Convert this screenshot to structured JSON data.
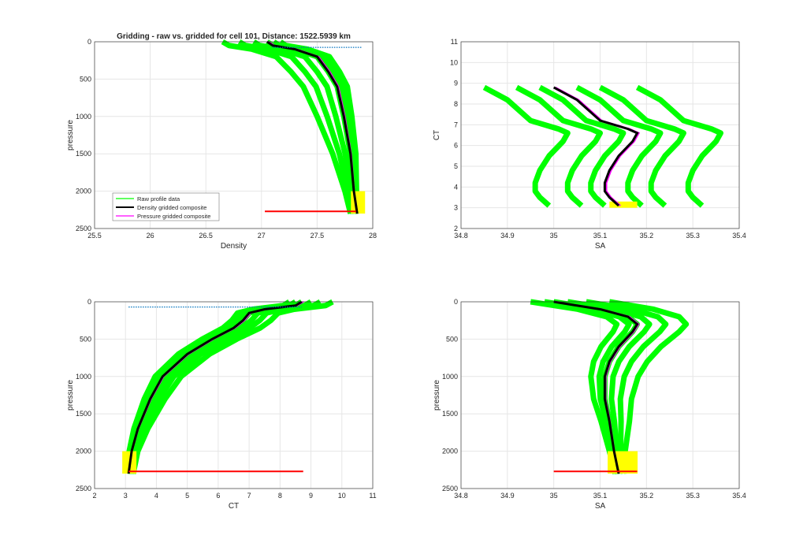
{
  "chart_data": [
    {
      "type": "line",
      "title": "Gridding - raw vs. gridded for cell 101, Distance: 1522.5939 km",
      "xlabel": "Density",
      "ylabel": "pressure",
      "xlim": [
        25.5,
        28
      ],
      "ylim": [
        0,
        2500
      ],
      "y_reversed": true,
      "xticks": [
        25.5,
        26,
        26.5,
        27,
        27.5,
        28
      ],
      "xticklabels": [
        "25.5",
        "26",
        "26.5",
        "27",
        "27.5",
        "28"
      ],
      "yticks": [
        0,
        500,
        1000,
        1500,
        2000,
        2500
      ],
      "yticklabels": [
        "0",
        "500",
        "1000",
        "1500",
        "2000",
        "2500"
      ],
      "grid": true,
      "composite": {
        "x": [
          27.05,
          27.1,
          27.3,
          27.5,
          27.6,
          27.68,
          27.74,
          27.8,
          27.83,
          27.86
        ],
        "y": [
          0,
          50,
          100,
          200,
          400,
          600,
          1000,
          1500,
          2000,
          2300
        ]
      },
      "raw_spread": [
        -0.4,
        -0.25,
        -0.12,
        0,
        0.06,
        0.12
      ],
      "red_line": {
        "x": [
          27.03,
          27.85
        ],
        "y": [
          2270,
          2270
        ]
      },
      "blue_dotted": {
        "x": [
          27.1,
          27.9
        ],
        "y": [
          75,
          75
        ]
      },
      "legend": {
        "placement": "bottom-left",
        "entries": [
          "Raw profile data",
          "Density gridded composite",
          "Pressure gridded composite"
        ]
      }
    },
    {
      "type": "line",
      "title": "",
      "xlabel": "SA",
      "ylabel": "CT",
      "xlim": [
        34.8,
        35.4
      ],
      "ylim": [
        2,
        11
      ],
      "y_reversed": false,
      "xticks": [
        34.8,
        34.9,
        35,
        35.1,
        35.2,
        35.3,
        35.4
      ],
      "xticklabels": [
        "34.8",
        "34.9",
        "35",
        "35.1",
        "35.2",
        "35.3",
        "35.4"
      ],
      "yticks": [
        2,
        3,
        4,
        5,
        6,
        7,
        8,
        9,
        10,
        11
      ],
      "yticklabels": [
        "2",
        "3",
        "4",
        "5",
        "6",
        "7",
        "8",
        "9",
        "10",
        "11"
      ],
      "grid": true,
      "composite": {
        "x": [
          35.0,
          35.05,
          35.1,
          35.16,
          35.18,
          35.17,
          35.14,
          35.12,
          35.11,
          35.11,
          35.12,
          35.13,
          35.14
        ],
        "y": [
          8.8,
          8.2,
          7.2,
          6.8,
          6.6,
          6.2,
          5.5,
          4.8,
          4.2,
          3.8,
          3.5,
          3.3,
          3.1
        ]
      },
      "raw_spread": [
        -0.15,
        -0.08,
        -0.03,
        0.05,
        0.1,
        0.18
      ]
    },
    {
      "type": "line",
      "title": "",
      "xlabel": "CT",
      "ylabel": "pressure",
      "xlim": [
        2,
        11
      ],
      "ylim": [
        0,
        2500
      ],
      "y_reversed": true,
      "xticks": [
        2,
        3,
        4,
        5,
        6,
        7,
        8,
        9,
        10,
        11
      ],
      "xticklabels": [
        "2",
        "3",
        "4",
        "5",
        "6",
        "7",
        "8",
        "9",
        "10",
        "11"
      ],
      "yticks": [
        0,
        500,
        1000,
        1500,
        2000,
        2500
      ],
      "yticklabels": [
        "0",
        "500",
        "1000",
        "1500",
        "2000",
        "2500"
      ],
      "grid": true,
      "composite": {
        "x": [
          8.7,
          8.5,
          7.5,
          7,
          6.8,
          6.5,
          5.8,
          5,
          4.2,
          3.8,
          3.4,
          3.2,
          3.1
        ],
        "y": [
          0,
          50,
          100,
          150,
          250,
          350,
          500,
          700,
          1000,
          1300,
          1700,
          2000,
          2300
        ]
      },
      "raw_spread": [
        -0.4,
        -0.2,
        0,
        0.3,
        0.6,
        1.0
      ],
      "red_line": {
        "x": [
          3.1,
          8.75
        ],
        "y": [
          2270,
          2270
        ]
      },
      "blue_dotted": {
        "x": [
          3.1,
          8.7
        ],
        "y": [
          70,
          70
        ]
      }
    },
    {
      "type": "line",
      "title": "",
      "xlabel": "SA",
      "ylabel": "pressure",
      "xlim": [
        34.8,
        35.4
      ],
      "ylim": [
        0,
        2500
      ],
      "y_reversed": true,
      "xticks": [
        34.8,
        34.9,
        35,
        35.1,
        35.2,
        35.3,
        35.4
      ],
      "xticklabels": [
        "34.8",
        "34.9",
        "35",
        "35.1",
        "35.2",
        "35.3",
        "35.4"
      ],
      "yticks": [
        0,
        500,
        1000,
        1500,
        2000,
        2500
      ],
      "yticklabels": [
        "0",
        "500",
        "1000",
        "1500",
        "2000",
        "2500"
      ],
      "grid": true,
      "composite": {
        "x": [
          35.0,
          35.1,
          35.16,
          35.18,
          35.17,
          35.14,
          35.12,
          35.11,
          35.11,
          35.12,
          35.13,
          35.14
        ],
        "y": [
          0,
          100,
          200,
          300,
          400,
          600,
          800,
          1000,
          1300,
          1600,
          2000,
          2300
        ]
      },
      "raw_spread": [
        -0.05,
        -0.02,
        0,
        0.03,
        0.07,
        0.12
      ],
      "red_line": {
        "x": [
          35.0,
          35.18
        ],
        "y": [
          2270,
          2270
        ]
      }
    }
  ],
  "colors": {
    "raw": "#00ff00",
    "density": "#000000",
    "pressure": "#ff00ff",
    "red": "#ff0000",
    "yellow": "#ffff00",
    "blue": "#0072bd"
  }
}
